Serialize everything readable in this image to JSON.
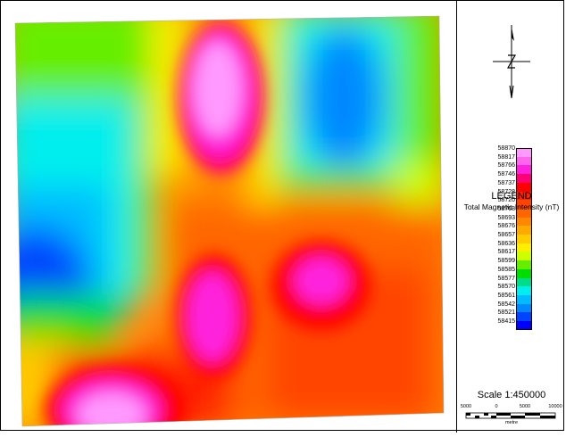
{
  "legend": {
    "values": [
      "58870",
      "58817",
      "58766",
      "58746",
      "58737",
      "58728",
      "58720",
      "58708",
      "58693",
      "58676",
      "58657",
      "58636",
      "58617",
      "58599",
      "58585",
      "58577",
      "58570",
      "58561",
      "58542",
      "58521",
      "58415"
    ],
    "colors": [
      "#ff99ff",
      "#ff66ee",
      "#ff22dd",
      "#ff0077",
      "#ff0000",
      "#ff2200",
      "#ff4400",
      "#ff6600",
      "#ff8800",
      "#ffaa00",
      "#ffcc00",
      "#ffee00",
      "#ccff00",
      "#66ee00",
      "#00dd00",
      "#00dd88",
      "#00eeee",
      "#00bbff",
      "#0088ff",
      "#0044ff",
      "#0000ff"
    ],
    "title": "LEGEND",
    "subtitle": "Total Magnetic Intensity (nT)"
  },
  "scale": {
    "text": "Scale 1:450000",
    "ticks": [
      "5000",
      "0",
      "5000",
      "10000"
    ],
    "unit": "metre"
  },
  "north_arrow": {
    "icon": "north-arrow-icon"
  }
}
